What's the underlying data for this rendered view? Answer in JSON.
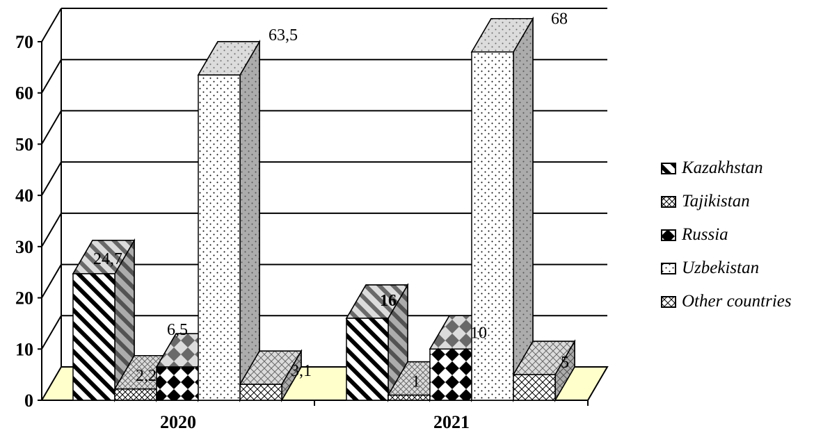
{
  "chart_data": {
    "type": "bar",
    "categories": [
      "2020",
      "2021"
    ],
    "series": [
      {
        "name": "Kazakhstan",
        "values": [
          24.7,
          16
        ],
        "labels": [
          "24,7",
          "16"
        ]
      },
      {
        "name": "Tajikistan",
        "values": [
          2.2,
          1
        ],
        "labels": [
          "2,2",
          "1"
        ]
      },
      {
        "name": "Russia",
        "values": [
          6.5,
          10
        ],
        "labels": [
          "6,5",
          "10"
        ]
      },
      {
        "name": "Uzbekistan",
        "values": [
          63.5,
          68
        ],
        "labels": [
          "63,5",
          "68"
        ]
      },
      {
        "name": "Other countries",
        "values": [
          3.1,
          5
        ],
        "labels": [
          "3,1",
          "5"
        ]
      }
    ],
    "yticks": [
      "0",
      "10",
      "20",
      "30",
      "40",
      "50",
      "60",
      "70"
    ],
    "ylim": [
      0,
      70
    ],
    "grid": true,
    "legend_position": "right",
    "colors": {
      "floor": "#ffffcc",
      "top_face": "#c0c0c0",
      "side_face": "#808080",
      "ink": "#000000"
    }
  }
}
